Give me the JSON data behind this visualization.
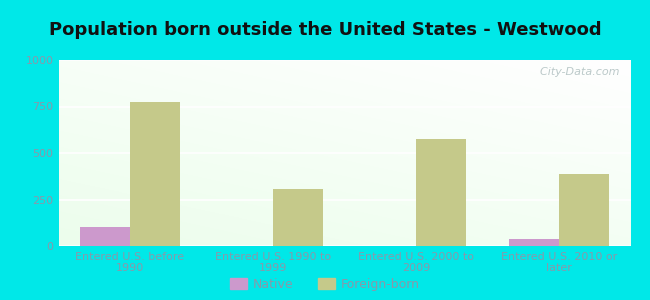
{
  "title": "Population born outside the United States - Westwood",
  "categories": [
    "Entered U.S. before\n1990",
    "Entered U.S. 1990 to\n1999",
    "Entered U.S. 2000 to\n2009",
    "Entered U.S. 2010 or\nlater"
  ],
  "native_values": [
    100,
    0,
    0,
    35
  ],
  "foreign_values": [
    775,
    305,
    575,
    385
  ],
  "native_color": "#cc99cc",
  "foreign_color": "#c5c98a",
  "background_outer": "#00e8e8",
  "ylim": [
    0,
    1000
  ],
  "yticks": [
    0,
    250,
    500,
    750,
    1000
  ],
  "watermark": "  City-Data.com",
  "bar_width": 0.35,
  "title_fontsize": 13,
  "tick_fontsize": 8,
  "legend_fontsize": 9,
  "xlabel_color": "#8899aa",
  "ylabel_color": "#8899aa",
  "title_color": "#111111"
}
